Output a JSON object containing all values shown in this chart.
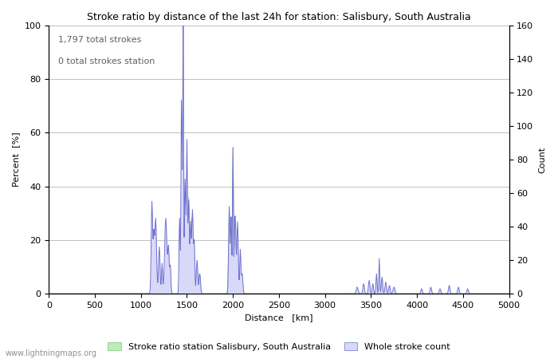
{
  "title": "Stroke ratio by distance of the last 24h for station: Salisbury, South Australia",
  "xlabel": "Distance   [km]",
  "ylabel_left": "Percent  [%]",
  "ylabel_right": "Count",
  "annotation_line1": "1,797 total strokes",
  "annotation_line2": "0 total strokes station",
  "watermark": "www.lightningmaps.org",
  "xlim": [
    0,
    5000
  ],
  "ylim_left": [
    0,
    100
  ],
  "ylim_right": [
    0,
    160
  ],
  "yticks_left": [
    0,
    20,
    40,
    60,
    80,
    100
  ],
  "yticks_right": [
    0,
    20,
    40,
    60,
    80,
    100,
    120,
    140,
    160
  ],
  "xticks": [
    0,
    500,
    1000,
    1500,
    2000,
    2500,
    3000,
    3500,
    4000,
    4500,
    5000
  ],
  "legend_entries": [
    "Stroke ratio station Salisbury, South Australia",
    "Whole stroke count"
  ],
  "bg_color": "#ffffff",
  "grid_color": "#c0c0c0",
  "line_color": "#7070d0",
  "fill_green_color": "#b8eeb8",
  "fill_blue_color": "#d8d8f8"
}
